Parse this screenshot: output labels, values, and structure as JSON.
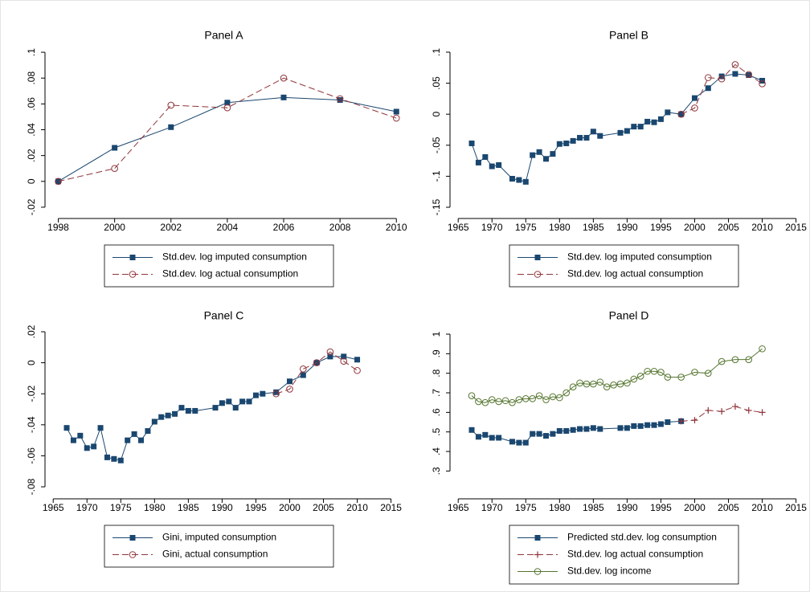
{
  "chart_data": [
    {
      "type": "line",
      "title": "Panel A",
      "xlim": [
        1997.7,
        2010.05
      ],
      "xticks": [
        1998,
        2000,
        2002,
        2004,
        2006,
        2008,
        2010
      ],
      "ylim": [
        -0.0275,
        0.1044
      ],
      "yticks": [
        {
          "value": -0.02,
          "label": "-.02"
        },
        0,
        {
          "value": 0.02,
          "label": ".02"
        },
        {
          "value": 0.04,
          "label": ".04"
        },
        {
          "value": 0.06,
          "label": ".06"
        },
        {
          "value": 0.08,
          "label": ".08"
        },
        {
          "value": 0.1,
          "label": ".1"
        }
      ],
      "series": [
        {
          "name": "Std.dev. log imputed consumption",
          "color": "#1a476f",
          "marker": "square",
          "dash": false,
          "x": [
            1998,
            2000,
            2002,
            2004,
            2006,
            2008,
            2010
          ],
          "values": [
            0,
            0.026,
            0.042,
            0.061,
            0.065,
            0.063,
            0.054
          ]
        },
        {
          "name": "Std.dev. log actual consumption",
          "color": "#90353b",
          "marker": "circle",
          "dash": true,
          "x": [
            1998,
            2000,
            2002,
            2004,
            2006,
            2008,
            2010
          ],
          "values": [
            0,
            0.01,
            0.059,
            0.057,
            0.08,
            0.064,
            0.049
          ]
        }
      ]
    },
    {
      "type": "line",
      "title": "Panel B",
      "xlim": [
        1964.5,
        2016
      ],
      "xticks": [
        1965,
        1970,
        1975,
        1980,
        1985,
        1990,
        1995,
        2000,
        2005,
        2010,
        2015
      ],
      "ylim": [
        -0.1655,
        0.109
      ],
      "yticks": [
        {
          "value": -0.15,
          "label": "-.15"
        },
        {
          "value": -0.1,
          "label": "-.1"
        },
        {
          "value": -0.05,
          "label": "-.05"
        },
        0,
        {
          "value": 0.05,
          "label": ".05"
        },
        {
          "value": 0.1,
          "label": ".1"
        }
      ],
      "series": [
        {
          "name": "Std.dev. log imputed consumption",
          "color": "#1a476f",
          "marker": "square",
          "dash": false,
          "x": [
            1967,
            1968,
            1969,
            1970,
            1971,
            1973,
            1974,
            1975,
            1976,
            1977,
            1978,
            1979,
            1980,
            1981,
            1982,
            1983,
            1984,
            1985,
            1986,
            1989,
            1990,
            1991,
            1992,
            1993,
            1994,
            1995,
            1996,
            1998,
            2000,
            2002,
            2004,
            2006,
            2008,
            2010
          ],
          "values": [
            -0.047,
            -0.078,
            -0.069,
            -0.084,
            -0.082,
            -0.104,
            -0.106,
            -0.109,
            -0.066,
            -0.061,
            -0.072,
            -0.064,
            -0.048,
            -0.047,
            -0.043,
            -0.038,
            -0.038,
            -0.028,
            -0.035,
            -0.03,
            -0.027,
            -0.02,
            -0.02,
            -0.012,
            -0.013,
            -0.008,
            0.003,
            0,
            0.026,
            0.042,
            0.061,
            0.065,
            0.063,
            0.054
          ]
        },
        {
          "name": "Std.dev. log actual consumption",
          "color": "#90353b",
          "marker": "circle",
          "dash": true,
          "x": [
            1998,
            2000,
            2002,
            2004,
            2006,
            2008,
            2010
          ],
          "values": [
            0,
            0.01,
            0.059,
            0.057,
            0.08,
            0.064,
            0.049
          ]
        }
      ]
    },
    {
      "type": "line",
      "title": "Panel C",
      "xlim": [
        1964.5,
        2016
      ],
      "xticks": [
        1965,
        1970,
        1975,
        1980,
        1985,
        1990,
        1995,
        2000,
        2005,
        2010,
        2015
      ],
      "ylim": [
        -0.0867,
        0.0231
      ],
      "yticks": [
        {
          "value": -0.08,
          "label": "-.08"
        },
        {
          "value": -0.06,
          "label": "-.06"
        },
        {
          "value": -0.04,
          "label": "-.04"
        },
        {
          "value": -0.02,
          "label": "-.02"
        },
        0,
        {
          "value": 0.02,
          "label": ".02"
        }
      ],
      "series": [
        {
          "name": "Gini, imputed consumption",
          "color": "#1a476f",
          "marker": "square",
          "dash": false,
          "x": [
            1967,
            1968,
            1969,
            1970,
            1971,
            1972,
            1973,
            1974,
            1975,
            1976,
            1977,
            1978,
            1979,
            1980,
            1981,
            1982,
            1983,
            1984,
            1985,
            1986,
            1989,
            1990,
            1991,
            1992,
            1993,
            1994,
            1995,
            1996,
            1998,
            2000,
            2002,
            2004,
            2006,
            2008,
            2010
          ],
          "values": [
            -0.042,
            -0.05,
            -0.047,
            -0.055,
            -0.054,
            -0.042,
            -0.061,
            -0.062,
            -0.063,
            -0.05,
            -0.046,
            -0.05,
            -0.044,
            -0.038,
            -0.035,
            -0.034,
            -0.033,
            -0.029,
            -0.031,
            -0.031,
            -0.029,
            -0.026,
            -0.025,
            -0.029,
            -0.025,
            -0.025,
            -0.021,
            -0.02,
            -0.019,
            -0.012,
            -0.008,
            0,
            0.004,
            0.004,
            0.002
          ]
        },
        {
          "name": "Gini, actual consumption",
          "color": "#90353b",
          "marker": "circle",
          "dash": true,
          "x": [
            1998,
            2000,
            2002,
            2004,
            2006,
            2008,
            2010
          ],
          "values": [
            -0.02,
            -0.017,
            -0.004,
            0,
            0.007,
            0.001,
            -0.005
          ]
        }
      ]
    },
    {
      "type": "line",
      "title": "Panel D",
      "xlim": [
        1964.5,
        2016
      ],
      "xticks": [
        1965,
        1970,
        1975,
        1980,
        1985,
        1990,
        1995,
        2000,
        2005,
        2010,
        2015
      ],
      "ylim": [
        0.166,
        1.037
      ],
      "yticks": [
        {
          "value": 0.3,
          "label": ".3"
        },
        {
          "value": 0.4,
          "label": ".4"
        },
        {
          "value": 0.5,
          "label": ".5"
        },
        {
          "value": 0.6,
          "label": ".6"
        },
        {
          "value": 0.7,
          "label": ".7"
        },
        {
          "value": 0.8,
          "label": ".8"
        },
        {
          "value": 0.9,
          "label": ".9"
        },
        1
      ],
      "series": [
        {
          "name": "Predicted std.dev. log consumption",
          "color": "#1a476f",
          "marker": "square",
          "dash": false,
          "x": [
            1967,
            1968,
            1969,
            1970,
            1971,
            1973,
            1974,
            1975,
            1976,
            1977,
            1978,
            1979,
            1980,
            1981,
            1982,
            1983,
            1984,
            1985,
            1986,
            1989,
            1990,
            1991,
            1992,
            1993,
            1994,
            1995,
            1996,
            1998
          ],
          "values": [
            0.51,
            0.475,
            0.485,
            0.47,
            0.47,
            0.45,
            0.445,
            0.445,
            0.49,
            0.49,
            0.48,
            0.49,
            0.505,
            0.505,
            0.51,
            0.515,
            0.515,
            0.52,
            0.515,
            0.52,
            0.52,
            0.53,
            0.53,
            0.535,
            0.535,
            0.54,
            0.55,
            0.555
          ]
        },
        {
          "name": "Std.dev. log actual consumption",
          "color": "#90353b",
          "marker": "plus",
          "dash": true,
          "x": [
            1998,
            2000,
            2002,
            2004,
            2006,
            2008,
            2010
          ],
          "values": [
            0.555,
            0.56,
            0.61,
            0.605,
            0.63,
            0.61,
            0.6
          ]
        },
        {
          "name": "Std.dev. log income",
          "color": "#55752f",
          "marker": "circle",
          "dash": false,
          "x": [
            1967,
            1968,
            1969,
            1970,
            1971,
            1972,
            1973,
            1974,
            1975,
            1976,
            1977,
            1978,
            1979,
            1980,
            1981,
            1982,
            1983,
            1984,
            1985,
            1986,
            1987,
            1988,
            1989,
            1990,
            1991,
            1992,
            1993,
            1994,
            1995,
            1996,
            1998,
            2000,
            2002,
            2004,
            2006,
            2008,
            2010
          ],
          "values": [
            0.685,
            0.655,
            0.65,
            0.665,
            0.655,
            0.66,
            0.65,
            0.665,
            0.67,
            0.67,
            0.685,
            0.665,
            0.68,
            0.675,
            0.7,
            0.73,
            0.75,
            0.745,
            0.745,
            0.755,
            0.73,
            0.74,
            0.745,
            0.75,
            0.77,
            0.785,
            0.81,
            0.81,
            0.805,
            0.78,
            0.78,
            0.805,
            0.8,
            0.86,
            0.87,
            0.87,
            0.925
          ]
        }
      ]
    }
  ]
}
